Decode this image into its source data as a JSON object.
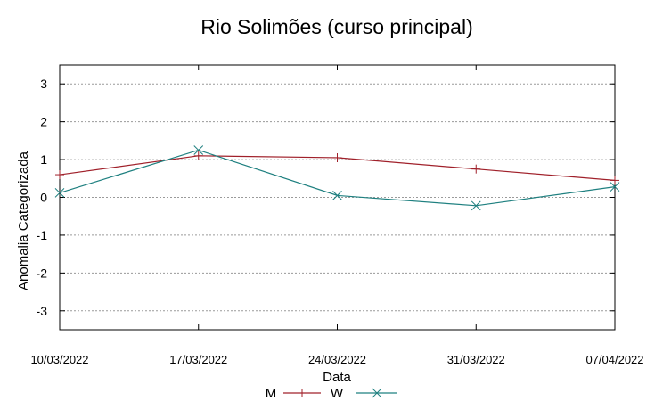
{
  "chart_data": {
    "type": "line",
    "title": "Rio Solimões (curso principal)",
    "xlabel": "Data",
    "ylabel": "Anomalia Categorizada",
    "categories": [
      "10/03/2022",
      "17/03/2022",
      "24/03/2022",
      "31/03/2022",
      "07/04/2022"
    ],
    "ylim": [
      -3.5,
      3.5
    ],
    "yticks": [
      "3",
      "2",
      "1",
      "0",
      "-1",
      "-2",
      "-3"
    ],
    "grid": true,
    "legend_position": "bottom-center",
    "series": [
      {
        "name": "M",
        "color": "#a0202a",
        "marker": "plus",
        "values": [
          0.6,
          1.1,
          1.05,
          0.75,
          0.45
        ]
      },
      {
        "name": "W",
        "color": "#1f8080",
        "marker": "x",
        "values": [
          0.12,
          1.25,
          0.05,
          -0.22,
          0.28
        ]
      }
    ]
  }
}
